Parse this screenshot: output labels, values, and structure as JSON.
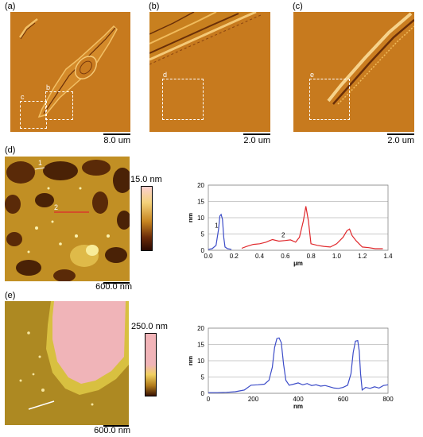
{
  "panels": {
    "a": {
      "label": "(a)",
      "scale": "8.0 um",
      "roi_c": "c",
      "roi_b": "b"
    },
    "b": {
      "label": "(b)",
      "scale": "2.0 um",
      "roi": "d"
    },
    "c": {
      "label": "(c)",
      "scale": "2.0 um",
      "roi": "e"
    },
    "d": {
      "label": "(d)",
      "scale": "600.0 nm",
      "colorbar_max": "15.0 nm",
      "line1": "1",
      "line2": "2"
    },
    "e": {
      "label": "(e)",
      "scale": "600.0 nm",
      "colorbar_max": "250.0 nm"
    }
  },
  "colors": {
    "blue": "#3c4cc8",
    "red": "#e0282c",
    "afm_light": "#f0c45a",
    "afm_mid": "#c6791c",
    "afm_dark": "#7a3a0c"
  },
  "chart_data": [
    {
      "type": "line",
      "xlabel": "µm",
      "ylabel": "nm",
      "xlim": [
        0.0,
        1.4
      ],
      "ylim": [
        0,
        20
      ],
      "xticks": [
        "0.0",
        "0.2",
        "0.4",
        "0.6",
        "0.8",
        "1.0",
        "1.2",
        "1.4"
      ],
      "yticks": [
        "0",
        "5",
        "10",
        "15",
        "20"
      ],
      "grid": true,
      "annotations": [
        "1",
        "2"
      ],
      "series": [
        {
          "color": "#3c4cc8",
          "x": [
            0.0,
            0.03,
            0.06,
            0.08,
            0.09,
            0.1,
            0.11,
            0.12,
            0.13,
            0.15,
            0.18
          ],
          "y": [
            0.3,
            0.5,
            1.5,
            6.5,
            10.5,
            11.0,
            9.5,
            4.0,
            1.0,
            0.5,
            0.3
          ]
        },
        {
          "color": "#e0282c",
          "x": [
            0.26,
            0.3,
            0.35,
            0.4,
            0.45,
            0.48,
            0.5,
            0.55,
            0.6,
            0.64,
            0.68,
            0.71,
            0.74,
            0.76,
            0.78,
            0.8,
            0.85,
            0.9,
            0.95,
            1.0,
            1.05,
            1.08,
            1.1,
            1.12,
            1.15,
            1.2,
            1.25,
            1.3,
            1.36
          ],
          "y": [
            0.6,
            1.2,
            1.8,
            2.0,
            2.5,
            3.0,
            3.3,
            2.8,
            3.0,
            3.2,
            2.5,
            4.0,
            9.0,
            13.5,
            9.0,
            2.0,
            1.5,
            1.2,
            1.0,
            2.0,
            4.0,
            6.0,
            6.5,
            4.5,
            3.0,
            1.0,
            0.8,
            0.5,
            0.5
          ]
        }
      ]
    },
    {
      "type": "line",
      "xlabel": "nm",
      "ylabel": "nm",
      "xlim": [
        0,
        800
      ],
      "ylim": [
        0,
        20
      ],
      "xticks": [
        "0",
        "200",
        "400",
        "600",
        "800"
      ],
      "yticks": [
        "0",
        "5",
        "10",
        "15",
        "20"
      ],
      "grid": true,
      "series": [
        {
          "color": "#3c4cc8",
          "x": [
            0,
            40,
            80,
            120,
            160,
            190,
            220,
            250,
            270,
            285,
            295,
            305,
            315,
            325,
            335,
            345,
            360,
            380,
            400,
            420,
            440,
            460,
            480,
            500,
            520,
            540,
            560,
            580,
            600,
            620,
            635,
            645,
            655,
            665,
            672,
            678,
            685,
            700,
            720,
            740,
            760,
            780,
            800
          ],
          "y": [
            0.2,
            0.2,
            0.3,
            0.5,
            1.0,
            2.5,
            2.6,
            2.8,
            4.0,
            8.0,
            14.0,
            16.8,
            17.0,
            15.5,
            9.0,
            4.0,
            2.5,
            2.8,
            3.2,
            2.6,
            3.0,
            2.4,
            2.6,
            2.2,
            2.4,
            2.0,
            1.6,
            1.5,
            1.8,
            2.5,
            6.0,
            12.5,
            16.0,
            16.2,
            13.0,
            6.0,
            1.0,
            1.8,
            1.5,
            2.0,
            1.6,
            2.4,
            2.6
          ]
        }
      ]
    }
  ]
}
